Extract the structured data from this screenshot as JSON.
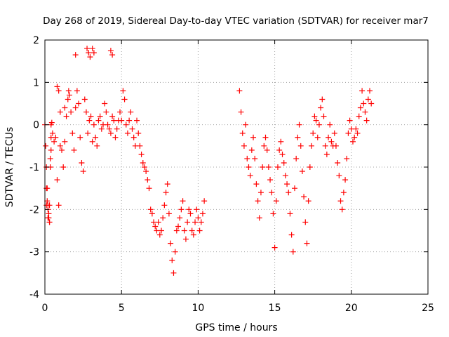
{
  "chart_data": {
    "type": "scatter",
    "title": "Day 268 of 2019, Sidereal Day-to-day VTEC variation (SDTVAR) for receiver mar7",
    "xlabel": "GPS time / hours",
    "ylabel": "SDTVAR / TECUs",
    "xlim": [
      0,
      25
    ],
    "ylim": [
      -4,
      2
    ],
    "xticks": [
      0,
      5,
      10,
      15,
      20,
      25
    ],
    "yticks": [
      -4,
      -3,
      -2,
      -1,
      0,
      1,
      2
    ],
    "grid": true,
    "marker": "+",
    "color": "#ff0000",
    "series": [
      {
        "name": "SDTVAR",
        "x": [
          0.0,
          0.05,
          0.1,
          0.15,
          0.2,
          0.25,
          0.3,
          0.35,
          0.4,
          0.1,
          0.15,
          0.2,
          0.25,
          0.3,
          0.35,
          0.4,
          0.45,
          0.5,
          0.6,
          0.7,
          0.8,
          0.9,
          1.0,
          1.1,
          1.2,
          1.3,
          1.4,
          1.5,
          1.55,
          1.6,
          1.7,
          1.8,
          1.9,
          2.0,
          2.1,
          2.2,
          2.3,
          2.4,
          2.5,
          2.6,
          2.7,
          2.8,
          2.9,
          3.0,
          3.1,
          3.2,
          3.3,
          3.4,
          3.5,
          3.6,
          3.7,
          3.8,
          3.9,
          4.0,
          4.1,
          4.2,
          4.3,
          4.4,
          4.5,
          4.6,
          4.7,
          4.8,
          4.9,
          5.0,
          5.1,
          5.2,
          5.3,
          5.4,
          5.5,
          5.6,
          5.7,
          5.8,
          5.9,
          6.0,
          6.1,
          6.2,
          6.3,
          6.4,
          6.5,
          6.6,
          6.7,
          6.8,
          6.9,
          7.0,
          7.1,
          7.2,
          7.3,
          7.4,
          7.5,
          7.6,
          7.7,
          7.8,
          7.9,
          8.0,
          8.1,
          8.2,
          8.3,
          8.4,
          8.5,
          8.6,
          8.7,
          8.8,
          8.9,
          9.0,
          9.1,
          9.2,
          9.3,
          9.4,
          9.5,
          9.6,
          9.7,
          9.8,
          9.9,
          10.0,
          10.1,
          10.2,
          10.3,
          10.4,
          12.7,
          12.8,
          12.9,
          13.0,
          13.1,
          13.2,
          13.3,
          13.4,
          13.5,
          13.6,
          13.7,
          13.8,
          13.9,
          14.0,
          14.1,
          14.2,
          14.3,
          14.4,
          14.5,
          14.6,
          14.7,
          14.8,
          14.9,
          15.0,
          15.1,
          15.2,
          15.3,
          15.4,
          15.5,
          15.6,
          15.7,
          15.8,
          15.9,
          16.0,
          16.1,
          16.2,
          16.3,
          16.4,
          16.5,
          16.6,
          16.7,
          16.8,
          16.9,
          17.0,
          17.1,
          17.2,
          17.3,
          17.4,
          17.5,
          17.6,
          17.7,
          17.8,
          17.9,
          18.0,
          18.1,
          18.2,
          18.3,
          18.4,
          18.5,
          18.6,
          18.7,
          18.8,
          18.9,
          19.0,
          19.1,
          19.2,
          19.3,
          19.4,
          19.5,
          19.6,
          19.7,
          19.8,
          19.9,
          20.0,
          20.1,
          20.2,
          20.3,
          20.4,
          20.5,
          20.6,
          20.7,
          20.8,
          20.9,
          21.0,
          21.1,
          21.2,
          21.3,
          2.75,
          2.85,
          2.95,
          3.1,
          3.2,
          4.3,
          4.4,
          2.0,
          0.8,
          0.9,
          1.3,
          1.0,
          0.4,
          0.3,
          0.2,
          0.1
        ],
        "y": [
          0.0,
          -0.5,
          -1.0,
          -1.5,
          -1.9,
          -2.1,
          -2.3,
          -1.0,
          0.0,
          -1.5,
          -1.8,
          -2.0,
          -2.2,
          -2.3,
          -0.8,
          -0.3,
          0.05,
          -0.2,
          -0.4,
          -0.3,
          -1.3,
          -1.9,
          -0.5,
          -0.6,
          -1.0,
          -0.4,
          0.2,
          0.6,
          0.8,
          0.7,
          0.3,
          -0.2,
          -0.6,
          0.4,
          0.8,
          0.5,
          -0.3,
          -0.9,
          -1.1,
          0.6,
          0.3,
          -0.2,
          0.1,
          0.2,
          -0.4,
          0.0,
          -0.3,
          -0.5,
          0.1,
          0.2,
          -0.1,
          0.0,
          0.5,
          0.3,
          0.0,
          -0.1,
          -0.2,
          0.2,
          0.1,
          -0.3,
          -0.1,
          0.1,
          0.3,
          0.1,
          0.8,
          0.6,
          0.0,
          -0.2,
          0.1,
          0.3,
          -0.1,
          -0.3,
          -0.5,
          0.1,
          -0.2,
          -0.5,
          -0.7,
          -0.9,
          -1.0,
          -1.1,
          -1.3,
          -1.5,
          -2.0,
          -2.1,
          -2.3,
          -2.4,
          -2.5,
          -2.3,
          -2.6,
          -2.5,
          -2.2,
          -1.9,
          -1.6,
          -1.4,
          -2.1,
          -2.8,
          -3.2,
          -3.5,
          -3.0,
          -2.5,
          -2.4,
          -2.2,
          -2.0,
          -1.8,
          -2.5,
          -2.7,
          -2.3,
          -2.0,
          -2.1,
          -2.5,
          -2.6,
          -2.3,
          -2.0,
          -2.2,
          -2.5,
          -2.3,
          -2.1,
          -1.8,
          0.8,
          0.3,
          -0.2,
          -0.5,
          0.0,
          -0.8,
          -1.0,
          -1.2,
          -0.6,
          -0.3,
          -0.8,
          -1.4,
          -1.8,
          -2.2,
          -1.6,
          -1.0,
          -0.5,
          -0.3,
          -0.6,
          -1.0,
          -1.3,
          -1.6,
          -2.1,
          -2.9,
          -1.8,
          -1.0,
          -0.6,
          -0.4,
          -0.7,
          -0.9,
          -1.2,
          -1.4,
          -1.6,
          -2.1,
          -2.6,
          -3.0,
          -1.5,
          -0.8,
          -0.3,
          0.0,
          -0.5,
          -1.1,
          -1.7,
          -2.3,
          -2.8,
          -1.8,
          -1.0,
          -0.5,
          -0.2,
          0.2,
          0.1,
          -0.3,
          0.0,
          0.4,
          0.6,
          0.2,
          -0.5,
          -0.7,
          -0.3,
          0.0,
          -0.4,
          -0.5,
          -0.2,
          -0.5,
          -0.9,
          -1.2,
          -1.8,
          -2.0,
          -1.6,
          -1.3,
          -0.8,
          -0.2,
          0.1,
          -0.1,
          -0.4,
          -0.3,
          -0.1,
          -0.2,
          0.2,
          0.4,
          0.8,
          0.5,
          0.3,
          0.1,
          0.6,
          0.8,
          0.5,
          1.8,
          1.7,
          1.6,
          1.8,
          1.7,
          1.75,
          1.65,
          1.65,
          0.9,
          0.8,
          0.4,
          0.3,
          -0.6,
          -1.9,
          -2.2,
          -1.9
        ]
      }
    ]
  }
}
